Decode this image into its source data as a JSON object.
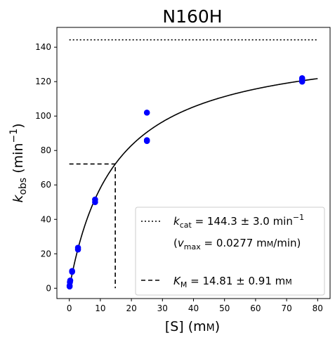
{
  "chart_data": {
    "type": "scatter",
    "title": "N160H",
    "xlabel": {
      "main": "[S] (m",
      "smallcaps": "M",
      "tail": ")"
    },
    "ylabel": {
      "k": "k",
      "sub": "obs",
      "rest": " (min",
      "sup": "−1",
      "close": ")"
    },
    "xlim": [
      -4,
      84
    ],
    "ylim": [
      -6,
      151.5
    ],
    "xticks": [
      0,
      10,
      20,
      30,
      40,
      50,
      60,
      70,
      80
    ],
    "yticks": [
      0,
      20,
      40,
      60,
      80,
      100,
      120,
      140
    ],
    "grid": false,
    "legend_position": "bottom-right",
    "kcat": 144.3,
    "km": 14.81,
    "curve_x_range": [
      0,
      80
    ],
    "points": [
      {
        "x": 0.1,
        "y": 1
      },
      {
        "x": 0.1,
        "y": 1.5
      },
      {
        "x": 0.2,
        "y": 3.5
      },
      {
        "x": 0.3,
        "y": 4.5
      },
      {
        "x": 0.9,
        "y": 9.5
      },
      {
        "x": 0.9,
        "y": 10
      },
      {
        "x": 2.8,
        "y": 22.5
      },
      {
        "x": 2.8,
        "y": 23.5
      },
      {
        "x": 8.3,
        "y": 50
      },
      {
        "x": 8.3,
        "y": 51.5
      },
      {
        "x": 25,
        "y": 85.5
      },
      {
        "x": 25,
        "y": 86
      },
      {
        "x": 25,
        "y": 102
      },
      {
        "x": 75,
        "y": 120
      },
      {
        "x": 75,
        "y": 121
      },
      {
        "x": 75,
        "y": 122
      }
    ],
    "colors": {
      "points": "#0000ff",
      "lines": "#000000"
    },
    "legend": {
      "kcat": {
        "sym": "k",
        "sub": "cat",
        "text": " = 144.3 ± 3.0 min",
        "sup": "−1"
      },
      "vmax": {
        "open": "(",
        "sym": "v",
        "sub": "max",
        "text": " = 0.0277 m",
        "smallcaps": "M",
        "tail": "/min)"
      },
      "km": {
        "sym": "K",
        "sub": "M",
        "text": " = 14.81 ± 0.91 m",
        "smallcaps": "M"
      }
    }
  }
}
